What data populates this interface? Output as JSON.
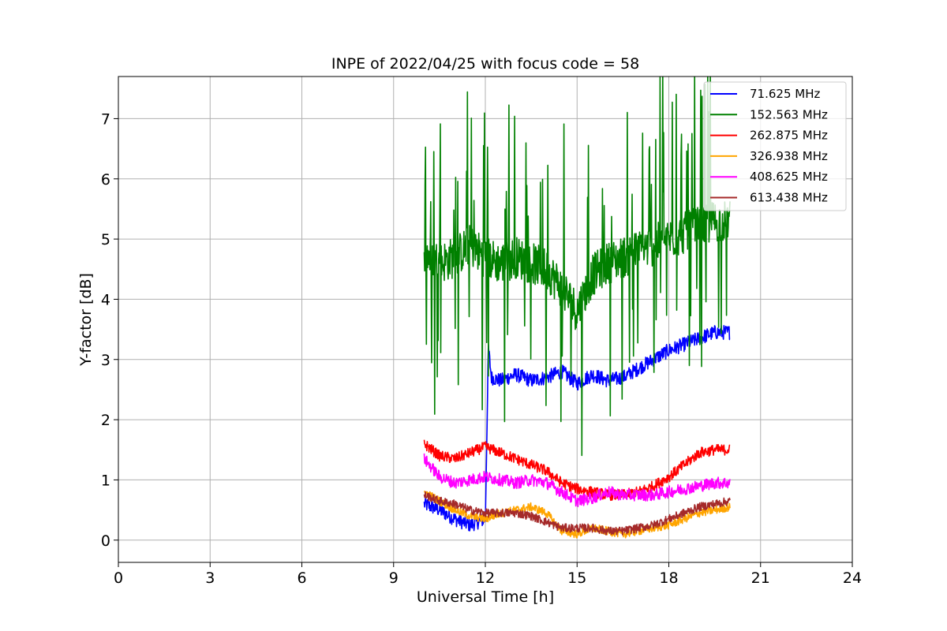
{
  "chart_data": {
    "type": "line",
    "title": "INPE of 2022/04/25 with focus code = 58",
    "xlabel": "Universal Time [h]",
    "ylabel": "Y-factor [dB]",
    "xlim": [
      0,
      24
    ],
    "ylim": [
      -0.37,
      7.7
    ],
    "xticks": [
      0,
      3,
      6,
      9,
      12,
      15,
      18,
      21,
      24
    ],
    "yticks": [
      0,
      1,
      2,
      3,
      4,
      5,
      6,
      7
    ],
    "grid": true,
    "legend_position": "top-right",
    "series": [
      {
        "name": "71.625 MHz",
        "color": "#0000ff",
        "x": [
          10.0,
          10.5,
          11.0,
          11.5,
          12.0,
          12.1,
          12.2,
          12.5,
          13.0,
          13.5,
          14.0,
          14.5,
          15.0,
          15.5,
          16.0,
          16.5,
          17.0,
          17.5,
          18.0,
          18.5,
          19.0,
          19.5,
          20.0
        ],
        "y": [
          0.6,
          0.5,
          0.35,
          0.25,
          0.35,
          3.2,
          2.7,
          2.65,
          2.75,
          2.65,
          2.7,
          2.8,
          2.6,
          2.75,
          2.65,
          2.7,
          2.85,
          3.0,
          3.15,
          3.25,
          3.35,
          3.45,
          3.45
        ],
        "noise": 0.12
      },
      {
        "name": "152.563 MHz",
        "color": "#008000",
        "x": [
          10.0,
          10.5,
          11.0,
          11.5,
          12.0,
          12.5,
          13.0,
          13.5,
          14.0,
          14.5,
          15.0,
          15.5,
          16.0,
          16.5,
          17.0,
          17.5,
          18.0,
          18.5,
          19.0,
          19.5,
          20.0
        ],
        "y": [
          4.8,
          4.6,
          4.7,
          4.9,
          4.7,
          4.6,
          4.7,
          4.6,
          4.5,
          4.2,
          3.8,
          4.4,
          4.6,
          4.7,
          4.8,
          4.9,
          5.0,
          5.1,
          5.2,
          5.3,
          5.3
        ],
        "noise": 0.35
      },
      {
        "name": "262.875 MHz",
        "color": "#ff0000",
        "x": [
          10.0,
          10.5,
          11.0,
          11.5,
          12.0,
          12.5,
          13.0,
          13.5,
          14.0,
          14.5,
          15.0,
          15.5,
          16.0,
          16.5,
          17.0,
          17.5,
          18.0,
          18.5,
          19.0,
          19.5,
          20.0
        ],
        "y": [
          1.6,
          1.4,
          1.35,
          1.45,
          1.55,
          1.45,
          1.35,
          1.25,
          1.15,
          0.95,
          0.85,
          0.8,
          0.75,
          0.75,
          0.8,
          0.9,
          1.05,
          1.25,
          1.45,
          1.5,
          1.5
        ],
        "noise": 0.09
      },
      {
        "name": "326.938 MHz",
        "color": "#ffa500",
        "x": [
          10.0,
          10.5,
          11.0,
          11.5,
          12.0,
          12.5,
          13.0,
          13.5,
          14.0,
          14.5,
          15.0,
          15.5,
          16.0,
          16.5,
          17.0,
          17.5,
          18.0,
          18.5,
          19.0,
          19.5,
          20.0
        ],
        "y": [
          0.8,
          0.65,
          0.5,
          0.4,
          0.35,
          0.45,
          0.5,
          0.55,
          0.45,
          0.15,
          0.1,
          0.2,
          0.15,
          0.1,
          0.15,
          0.2,
          0.25,
          0.35,
          0.45,
          0.5,
          0.55
        ],
        "noise": 0.07
      },
      {
        "name": "408.625 MHz",
        "color": "#ff00ff",
        "x": [
          10.0,
          10.5,
          11.0,
          11.5,
          12.0,
          12.5,
          13.0,
          13.5,
          14.0,
          14.5,
          15.0,
          15.5,
          16.0,
          16.5,
          17.0,
          17.5,
          18.0,
          18.5,
          19.0,
          19.5,
          20.0
        ],
        "y": [
          1.35,
          1.05,
          0.95,
          1.0,
          1.05,
          1.0,
          0.95,
          1.0,
          0.95,
          0.8,
          0.65,
          0.7,
          0.8,
          0.75,
          0.75,
          0.75,
          0.8,
          0.85,
          0.9,
          0.95,
          0.95
        ],
        "noise": 0.1
      },
      {
        "name": "613.438 MHz",
        "color": "#a52a2a",
        "x": [
          10.0,
          10.5,
          11.0,
          11.5,
          12.0,
          12.5,
          13.0,
          13.5,
          14.0,
          14.5,
          15.0,
          15.5,
          16.0,
          16.5,
          17.0,
          17.5,
          18.0,
          18.5,
          19.0,
          19.5,
          20.0
        ],
        "y": [
          0.75,
          0.65,
          0.6,
          0.5,
          0.45,
          0.45,
          0.45,
          0.4,
          0.3,
          0.2,
          0.2,
          0.2,
          0.15,
          0.15,
          0.2,
          0.25,
          0.35,
          0.45,
          0.55,
          0.6,
          0.65
        ],
        "noise": 0.07
      }
    ]
  }
}
